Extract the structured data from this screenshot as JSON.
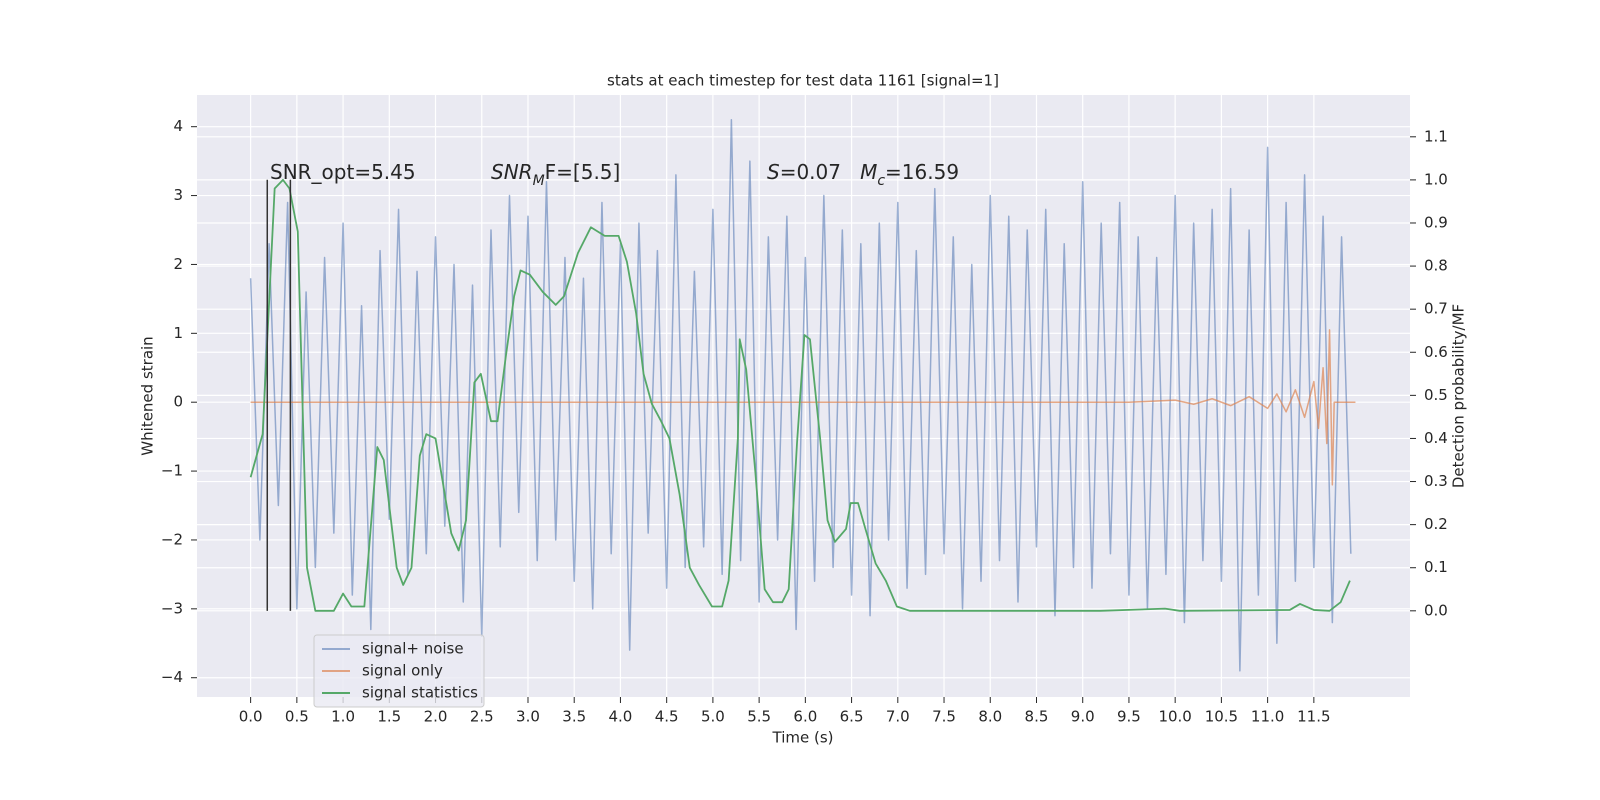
{
  "chart_data": {
    "type": "line",
    "title": "stats at each timestep for test data 1161 [signal=1]",
    "xlabel": "Time (s)",
    "ylabel": "Whitened strain",
    "y2label": "Detection probability/MF",
    "xlim": [
      -0.58,
      12.54
    ],
    "ylim": [
      -4.28,
      4.46
    ],
    "y2lim": [
      -0.2,
      1.197
    ],
    "xticks": [
      {
        "value": 0,
        "label": "0.0"
      },
      0.5,
      {
        "value": 1,
        "label": "1.0"
      },
      1.5,
      {
        "value": 2,
        "label": "2.0"
      },
      2.5,
      {
        "value": 3,
        "label": "3.0"
      },
      3.5,
      {
        "value": 4,
        "label": "4.0"
      },
      4.5,
      {
        "value": 5,
        "label": "5.0"
      },
      5.5,
      {
        "value": 6,
        "label": "6.0"
      },
      6.5,
      {
        "value": 7,
        "label": "7.0"
      },
      7.5,
      {
        "value": 8,
        "label": "8.0"
      },
      8.5,
      {
        "value": 9,
        "label": "9.0"
      },
      9.5,
      {
        "value": 10,
        "label": "10.0"
      },
      10.5,
      {
        "value": 11,
        "label": "11.0"
      },
      11.5
    ],
    "yticks": [
      {
        "value": -4,
        "label": "−4"
      },
      {
        "value": -3,
        "label": "−3"
      },
      {
        "value": -2,
        "label": "−2"
      },
      {
        "value": -1,
        "label": "−1"
      },
      0,
      1,
      2,
      3,
      4
    ],
    "y2ticks": [
      {
        "value": 0,
        "label": "0.0"
      },
      0.1,
      0.2,
      0.3,
      0.4,
      0.5,
      0.6,
      0.7,
      0.8,
      0.9,
      {
        "value": 1,
        "label": "1.0"
      },
      1.1
    ],
    "grid": true,
    "legend": "lower left",
    "series": [
      {
        "name": "signal+ noise",
        "color": "#4c72b0",
        "alpha": 0.55,
        "x": [
          0.0,
          0.1,
          0.2,
          0.3,
          0.4,
          0.5,
          0.6,
          0.7,
          0.8,
          0.9,
          1.0,
          1.1,
          1.2,
          1.3,
          1.4,
          1.5,
          1.6,
          1.7,
          1.8,
          1.9,
          2.0,
          2.1,
          2.2,
          2.3,
          2.4,
          2.5,
          2.6,
          2.7,
          2.8,
          2.9,
          3.0,
          3.1,
          3.2,
          3.3,
          3.4,
          3.5,
          3.6,
          3.7,
          3.8,
          3.9,
          4.0,
          4.1,
          4.2,
          4.3,
          4.4,
          4.5,
          4.6,
          4.7,
          4.8,
          4.9,
          5.0,
          5.1,
          5.2,
          5.3,
          5.4,
          5.5,
          5.6,
          5.7,
          5.8,
          5.9,
          6.0,
          6.1,
          6.2,
          6.3,
          6.4,
          6.5,
          6.6,
          6.7,
          6.8,
          6.9,
          7.0,
          7.1,
          7.2,
          7.3,
          7.4,
          7.5,
          7.6,
          7.7,
          7.8,
          7.9,
          8.0,
          8.1,
          8.2,
          8.3,
          8.4,
          8.5,
          8.6,
          8.7,
          8.8,
          8.9,
          9.0,
          9.1,
          9.2,
          9.3,
          9.4,
          9.5,
          9.6,
          9.7,
          9.8,
          9.9,
          10.0,
          10.1,
          10.2,
          10.3,
          10.4,
          10.5,
          10.6,
          10.7,
          10.8,
          10.9,
          11.0,
          11.1,
          11.2,
          11.3,
          11.4,
          11.5,
          11.6,
          11.7,
          11.8,
          11.9
        ],
        "values": [
          1.8,
          -2.0,
          2.3,
          -1.5,
          2.9,
          -3.0,
          1.6,
          -2.4,
          2.1,
          -1.9,
          2.6,
          -2.8,
          1.4,
          -3.3,
          2.2,
          -1.7,
          2.8,
          -2.5,
          1.9,
          -2.2,
          2.4,
          -1.8,
          2.0,
          -2.9,
          1.7,
          -3.4,
          2.5,
          -2.1,
          3.0,
          -1.6,
          2.7,
          -2.3,
          3.2,
          -2.0,
          2.1,
          -2.6,
          1.8,
          -3.0,
          2.9,
          -2.2,
          2.3,
          -3.6,
          2.6,
          -1.9,
          2.2,
          -2.7,
          3.3,
          -2.4,
          1.9,
          -2.1,
          2.8,
          -2.5,
          4.1,
          -2.3,
          3.5,
          -2.9,
          2.4,
          -2.0,
          2.7,
          -3.3,
          2.1,
          -2.6,
          3.0,
          -2.4,
          2.5,
          -2.8,
          2.3,
          -3.1,
          2.6,
          -2.0,
          2.9,
          -2.7,
          2.2,
          -2.5,
          3.1,
          -2.2,
          2.4,
          -3.0,
          2.0,
          -2.6,
          3.0,
          -2.3,
          2.7,
          -2.9,
          2.5,
          -2.1,
          2.8,
          -3.1,
          2.3,
          -2.4,
          3.2,
          -2.7,
          2.6,
          -2.2,
          2.9,
          -2.8,
          2.4,
          -3.0,
          2.1,
          -2.5,
          3.0,
          -3.2,
          2.6,
          -2.3,
          2.8,
          -2.6,
          3.1,
          -3.9,
          2.5,
          -2.8,
          3.7,
          -3.5,
          2.9,
          -2.6,
          3.3,
          -2.4,
          2.7,
          -3.2,
          2.4,
          -2.2
        ]
      },
      {
        "name": "signal only",
        "color": "#dd8452",
        "alpha": 0.7,
        "x": [
          0.0,
          9.5,
          10.0,
          10.2,
          10.4,
          10.6,
          10.8,
          11.0,
          11.1,
          11.2,
          11.3,
          11.4,
          11.5,
          11.55,
          11.6,
          11.64,
          11.67,
          11.7,
          11.72,
          11.8,
          11.95
        ],
        "values": [
          0,
          0,
          0.03,
          -0.03,
          0.05,
          -0.05,
          0.08,
          -0.09,
          0.12,
          -0.14,
          0.18,
          -0.22,
          0.3,
          -0.38,
          0.5,
          -0.6,
          1.05,
          -1.2,
          0.0,
          0.0,
          0.0
        ]
      },
      {
        "name": "signal statistics",
        "color": "#55a868",
        "alpha": 1,
        "axis": "y2",
        "x": [
          0.0,
          0.13,
          0.26,
          0.35,
          0.42,
          0.51,
          0.61,
          0.7,
          0.9,
          1.0,
          1.09,
          1.23,
          1.37,
          1.44,
          1.58,
          1.65,
          1.74,
          1.83,
          1.9,
          2.0,
          2.17,
          2.25,
          2.33,
          2.42,
          2.49,
          2.6,
          2.67,
          2.76,
          2.85,
          2.92,
          3.02,
          3.16,
          3.3,
          3.39,
          3.54,
          3.68,
          3.83,
          3.98,
          4.07,
          4.17,
          4.25,
          4.34,
          4.44,
          4.53,
          4.64,
          4.75,
          4.85,
          4.99,
          5.1,
          5.17,
          5.27,
          5.29,
          5.36,
          5.46,
          5.56,
          5.65,
          5.75,
          5.82,
          5.91,
          5.99,
          6.05,
          6.16,
          6.24,
          6.32,
          6.44,
          6.49,
          6.57,
          6.65,
          6.76,
          6.87,
          6.99,
          7.13,
          8.1,
          9.19,
          9.89,
          10.05,
          11.24,
          11.35,
          11.5,
          11.67,
          11.79,
          11.89
        ],
        "values": [
          0.31,
          0.41,
          0.98,
          1.0,
          0.98,
          0.88,
          0.1,
          0.0,
          0.0,
          0.04,
          0.01,
          0.01,
          0.38,
          0.35,
          0.1,
          0.06,
          0.1,
          0.36,
          0.41,
          0.4,
          0.18,
          0.14,
          0.21,
          0.53,
          0.55,
          0.44,
          0.44,
          0.59,
          0.73,
          0.79,
          0.78,
          0.74,
          0.71,
          0.73,
          0.83,
          0.89,
          0.87,
          0.87,
          0.81,
          0.69,
          0.55,
          0.48,
          0.44,
          0.4,
          0.27,
          0.1,
          0.06,
          0.01,
          0.01,
          0.07,
          0.4,
          0.63,
          0.56,
          0.32,
          0.05,
          0.02,
          0.02,
          0.05,
          0.39,
          0.64,
          0.63,
          0.4,
          0.21,
          0.16,
          0.19,
          0.25,
          0.25,
          0.19,
          0.11,
          0.07,
          0.01,
          0.0,
          0.0,
          0.0,
          0.005,
          0.0,
          0.002,
          0.016,
          0.002,
          0.0,
          0.02,
          0.07
        ]
      }
    ],
    "vlines": {
      "x": [
        0.18,
        0.43
      ],
      "ymin": -3.03,
      "ymax": 3.23,
      "color": "#333333"
    },
    "annotations": [
      {
        "segments": [
          {
            "text": "SNR_opt=5.45",
            "style": "normal"
          }
        ]
      },
      {
        "segments": [
          {
            "text": "SNR",
            "style": "italic"
          },
          {
            "text": "M",
            "style": "sub"
          },
          {
            "text": "F=[5.5]",
            "style": "normal"
          }
        ]
      },
      {
        "segments": [
          {
            "text": "S",
            "style": "italic"
          },
          {
            "text": "=0.07   ",
            "style": "normal"
          },
          {
            "text": "M",
            "style": "italic"
          },
          {
            "text": "c",
            "style": "sub"
          },
          {
            "text": "=16.59",
            "style": "normal"
          }
        ]
      }
    ]
  }
}
